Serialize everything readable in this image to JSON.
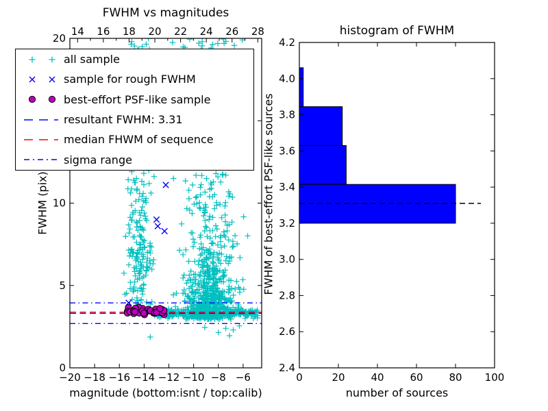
{
  "figure": {
    "background": "#ffffff"
  },
  "colors": {
    "all_sample": "#00bfbf",
    "rough_sample": "#0000ff",
    "psf_sample": "#bf00bf",
    "resultant_line": "#0000ff",
    "median_line": "#ff0000",
    "sigma_line": "#0000ff",
    "hist_fill": "#0000ff",
    "hist_dashed": "#000000",
    "axes": "#000000"
  },
  "legend": {
    "entries": [
      {
        "marker": "plus",
        "color": "#00bfbf",
        "label": "all sample"
      },
      {
        "marker": "cross",
        "color": "#0000ff",
        "label": "sample for rough FWHM"
      },
      {
        "marker": "circle",
        "color": "#bf00bf",
        "label": "best-effort PSF-like sample"
      },
      {
        "marker": "dashed",
        "color": "#0000ff",
        "label": "resultant FWHM: 3.31"
      },
      {
        "marker": "dashed",
        "color": "#ff0000",
        "label": "median FHWM of sequence"
      },
      {
        "marker": "dashdot",
        "color": "#0000ff",
        "label": "sigma range"
      }
    ]
  },
  "chart_data": [
    {
      "type": "scatter",
      "title": "FWHM vs magnitudes",
      "xlabel": "magnitude (bottom:isnt / top:calib)",
      "ylabel": "FWHM (pix)",
      "xlim": [
        -20,
        -4.5
      ],
      "ylim": [
        0,
        20
      ],
      "top_axis_lim": [
        13.4,
        28.3
      ],
      "x_ticks": {
        "values": [
          -20,
          -18,
          -16,
          -14,
          -12,
          -10,
          -8,
          -6
        ],
        "labels": [
          "−20",
          "−18",
          "−16",
          "−14",
          "−12",
          "−10",
          "−8",
          "−6"
        ]
      },
      "top_ticks": {
        "values": [
          14,
          16,
          18,
          20,
          22,
          24,
          26,
          28
        ],
        "labels": [
          "14",
          "16",
          "18",
          "20",
          "22",
          "24",
          "26",
          "28"
        ],
        "minor": [
          15,
          17,
          19,
          21,
          23,
          25,
          27
        ]
      },
      "y_ticks": {
        "values": [
          0,
          5,
          10,
          15,
          20
        ],
        "labels": [
          "0",
          "5",
          "10",
          "15",
          "20"
        ]
      },
      "grid": false,
      "legend_position": "upper left",
      "series": [
        {
          "name": "all sample",
          "marker": "+",
          "color": "#00bfbf",
          "generated_clusters": [
            {
              "count": 165,
              "x": {
                "dist": "normal",
                "mu": -14.4,
                "sd": 0.55,
                "clip": [
                  -15.65,
                  -12.95
                ]
              },
              "y": {
                "dist": "uniform",
                "a": 3.1,
                "b": 20
              }
            },
            {
              "count": 80,
              "x": {
                "dist": "normal",
                "mu": -14.3,
                "sd": 0.5,
                "clip": [
                  -15.6,
                  -13.0
                ]
              },
              "y": {
                "dist": "normal",
                "mu": 6.3,
                "sd": 1.6,
                "clip": [
                  3.4,
                  10.5
                ]
              }
            },
            {
              "count": 520,
              "x": {
                "dist": "normal",
                "mu": -8.6,
                "sd": 0.95,
                "clip": [
                  -11.6,
                  -5.05
                ]
              },
              "y": {
                "dist": "exp",
                "base": 2.95,
                "scale": 2.0,
                "clip": [
                  2.3,
                  19.9
                ]
              }
            },
            {
              "count": 230,
              "x": {
                "dist": "normal",
                "mu": -8.9,
                "sd": 1.25,
                "clip": [
                  -11.75,
                  -4.9
                ]
              },
              "y": {
                "dist": "uniform",
                "a": 3.2,
                "b": 20
              }
            },
            {
              "count": 300,
              "x": {
                "dist": "uniform",
                "a": -13.25,
                "b": -4.8
              },
              "y": {
                "dist": "normal",
                "mu": 3.33,
                "sd": 0.14,
                "clip": [
                  2.85,
                  3.8
                ]
              }
            }
          ],
          "extra_points": [
            [
              -15.0,
              19.8
            ],
            [
              -11.7,
              19.75
            ],
            [
              -9.3,
              19.8
            ],
            [
              -13.5,
              1.87
            ],
            [
              -8.0,
              2.15
            ],
            [
              -7.4,
              2.4
            ],
            [
              -6.8,
              2.3
            ],
            [
              -6.3,
              2.55
            ],
            [
              -9.1,
              2.45
            ],
            [
              -7.1,
              1.95
            ]
          ]
        },
        {
          "name": "sample for rough FWHM",
          "marker": "x",
          "color": "#0000ff",
          "points": [
            [
              -12.25,
              11.1
            ],
            [
              -13.0,
              9.0
            ],
            [
              -12.9,
              8.6
            ],
            [
              -12.35,
              8.3
            ],
            [
              -15.25,
              3.95
            ]
          ]
        },
        {
          "name": "best-effort PSF-like sample",
          "marker": "o",
          "color": "#bf00bf",
          "generated_clusters": [
            {
              "count": 36,
              "x": {
                "dist": "uniform",
                "a": -15.35,
                "b": -12.3
              },
              "y": {
                "dist": "normal",
                "mu": 3.45,
                "sd": 0.15,
                "clip": [
                  3.2,
                  3.8
                ]
              }
            }
          ]
        }
      ],
      "lines": [
        {
          "name": "sigma range upper",
          "y": 3.94,
          "style": "dashdot",
          "color": "#0000ff"
        },
        {
          "name": "sigma range lower",
          "y": 2.69,
          "style": "dashdot",
          "color": "#0000ff"
        },
        {
          "name": "resultant FWHM",
          "y": 3.31,
          "style": "dashed",
          "color": "#0000ff"
        },
        {
          "name": "median FHWM of sequence",
          "y": 3.38,
          "style": "dashed",
          "color": "#ff0000"
        }
      ]
    },
    {
      "type": "bar",
      "orientation": "horizontal",
      "title": "histogram of FWHM",
      "xlabel": "number of sources",
      "ylabel": "FWHM of best-effort PSF-like sources",
      "xlim": [
        0,
        100
      ],
      "ylim": [
        2.4,
        4.2
      ],
      "x_ticks": {
        "values": [
          0,
          20,
          40,
          60,
          80,
          100
        ],
        "labels": [
          "0",
          "20",
          "40",
          "60",
          "80",
          "100"
        ]
      },
      "y_ticks": {
        "values": [
          2.4,
          2.6,
          2.8,
          3.0,
          3.2,
          3.4,
          3.6,
          3.8,
          4.0,
          4.2
        ],
        "labels": [
          "2.4",
          "2.6",
          "2.8",
          "3.0",
          "3.2",
          "3.4",
          "3.6",
          "3.8",
          "4.0",
          "4.2"
        ]
      },
      "bin_edges": [
        3.2,
        3.415,
        3.63,
        3.845,
        4.06
      ],
      "counts": [
        80,
        24,
        22,
        2
      ],
      "dashed_line": {
        "y": 3.31,
        "x_extent": [
          0,
          93
        ],
        "color": "#000000"
      },
      "grid": false
    }
  ]
}
